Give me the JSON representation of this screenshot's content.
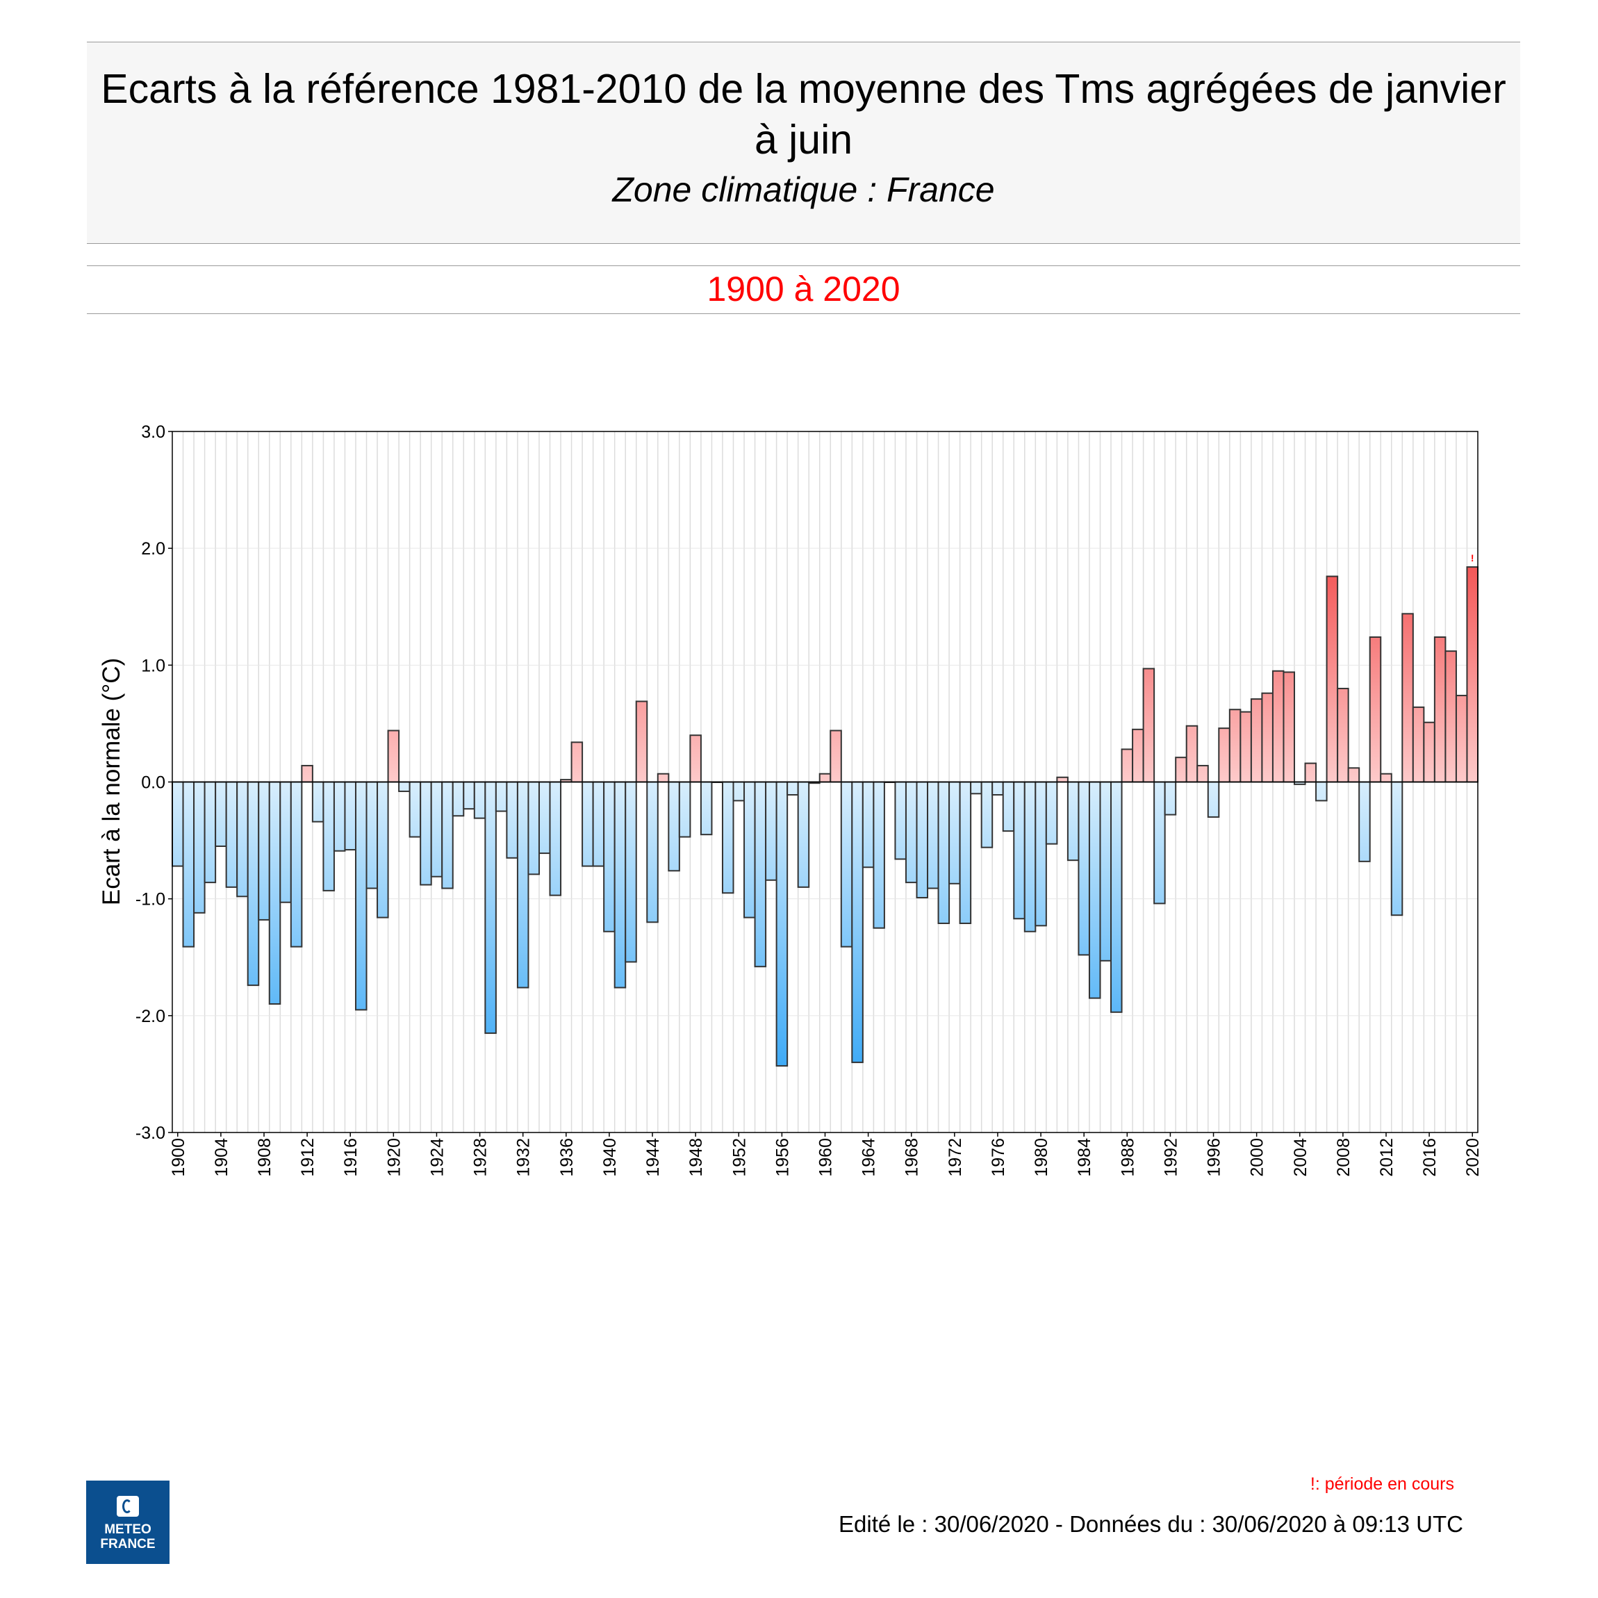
{
  "header": {
    "title": "Ecarts à la référence 1981-2010 de la moyenne des Tms agrégées de janvier à juin",
    "subtitle": "Zone climatique : France"
  },
  "period": "1900 à 2020",
  "footer": {
    "note": "!: période en cours",
    "edited": "Edité le : 30/06/2020 - Données du : 30/06/2020 à 09:13 UTC",
    "logo_line1": "METEO",
    "logo_line2": "FRANCE",
    "logo_color": "#0b4f8f"
  },
  "chart_data": {
    "type": "bar",
    "xlabel": "",
    "ylabel": "Ecart à la normale (°C)",
    "ylim": [
      -3.0,
      3.0
    ],
    "yticks": [
      "-3.0",
      "-2.0",
      "-1.0",
      "0.0",
      "1.0",
      "2.0",
      "3.0"
    ],
    "xticks": [
      "1900",
      "1904",
      "1908",
      "1912",
      "1916",
      "1920",
      "1924",
      "1928",
      "1932",
      "1936",
      "1940",
      "1944",
      "1948",
      "1952",
      "1956",
      "1960",
      "1964",
      "1968",
      "1972",
      "1976",
      "1980",
      "1984",
      "1988",
      "1992",
      "1996",
      "2000",
      "2004",
      "2008",
      "2012",
      "2016",
      "2020"
    ],
    "grid": true,
    "x_start": 1900,
    "x_end": 2020,
    "values": [
      -0.72,
      -1.41,
      -1.12,
      -0.86,
      -0.55,
      -0.9,
      -0.98,
      -1.74,
      -1.18,
      -1.9,
      -1.03,
      -1.41,
      0.14,
      -0.34,
      -0.93,
      -0.59,
      -0.58,
      -1.95,
      -0.91,
      -1.16,
      0.44,
      -0.08,
      -0.47,
      -0.88,
      -0.81,
      -0.91,
      -0.29,
      -0.23,
      -0.31,
      -2.15,
      -0.25,
      -0.65,
      -1.76,
      -0.79,
      -0.61,
      -0.97,
      0.02,
      0.34,
      -0.72,
      -0.72,
      -1.28,
      -1.76,
      -1.54,
      0.69,
      -1.2,
      0.07,
      -0.76,
      -0.47,
      0.4,
      -0.45,
      0.0,
      -0.95,
      -0.16,
      -1.16,
      -1.58,
      -0.84,
      -2.43,
      -0.11,
      -0.9,
      -0.01,
      0.07,
      0.44,
      -1.41,
      -2.4,
      -0.73,
      -1.25,
      0.0,
      -0.66,
      -0.86,
      -0.99,
      -0.91,
      -1.21,
      -0.87,
      -1.21,
      -0.1,
      -0.56,
      -0.11,
      -0.42,
      -1.17,
      -1.28,
      -1.23,
      -0.53,
      0.04,
      -0.67,
      -1.48,
      -1.85,
      -1.53,
      -1.97,
      0.28,
      0.45,
      0.97,
      -1.04,
      -0.28,
      0.21,
      0.48,
      0.14,
      -0.3,
      0.46,
      0.62,
      0.6,
      0.71,
      0.76,
      0.95,
      0.94,
      -0.02,
      0.16,
      -0.16,
      1.76,
      0.8,
      0.12,
      -0.68,
      1.24,
      0.07,
      -1.14,
      1.44,
      0.64,
      0.51,
      1.24,
      1.12,
      0.74,
      1.84
    ],
    "current_period_marker": "!",
    "colors": {
      "cold_light": "#d8eefc",
      "cold_dark": "#35a6f6",
      "warm_light": "#fdcaca",
      "warm_dark": "#f24a4a",
      "marker": "#ff0000"
    }
  }
}
